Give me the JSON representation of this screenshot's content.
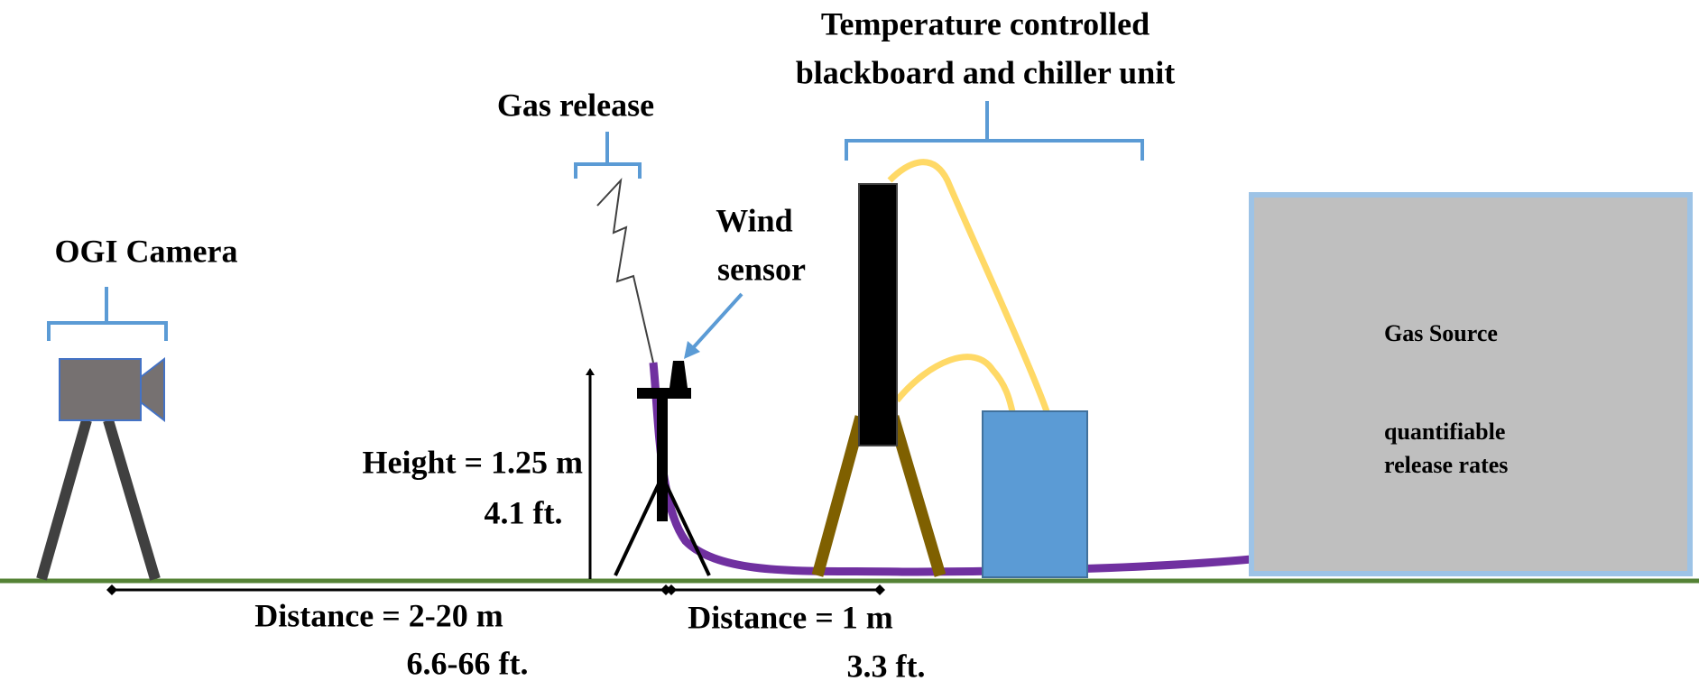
{
  "labels": {
    "camera": "OGI Camera",
    "gas_release": "Gas release",
    "wind_sensor": [
      "Wind",
      "sensor"
    ],
    "blackboard": [
      "Temperature controlled",
      "blackboard and chiller unit"
    ],
    "gas_source": {
      "title": "Gas Source",
      "note": [
        "quantifiable",
        "release rates"
      ]
    },
    "height": {
      "metric": "Height = 1.25 m",
      "imperial": "4.1 ft."
    },
    "distance_camera": {
      "metric": "Distance = 2-20 m",
      "imperial": "6.6-66 ft."
    },
    "distance_board": {
      "metric": "Distance = 1 m",
      "imperial": "3.3 ft."
    }
  }
}
